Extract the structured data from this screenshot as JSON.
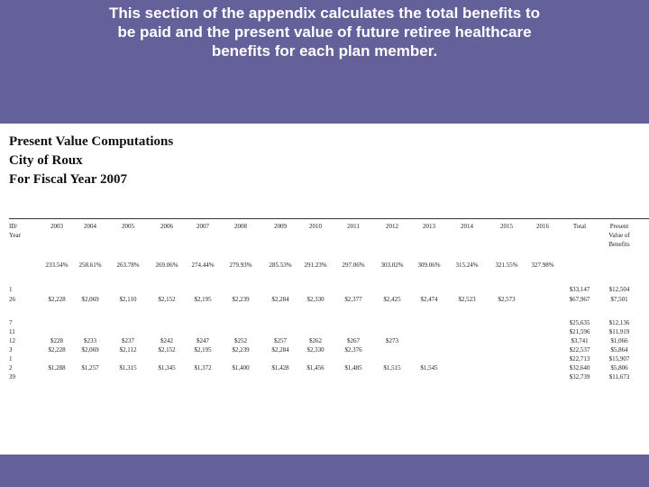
{
  "header": {
    "lines": [
      "This section of the appendix calculates the total benefits to",
      "be paid and the present value of future retiree healthcare",
      "benefits for each plan member."
    ]
  },
  "document": {
    "title_lines": [
      "Present Value Computations",
      "City of Roux",
      "For Fiscal Year 2007"
    ]
  },
  "table": {
    "header_rows": [
      [
        "ID/",
        "2003",
        "2004",
        "2005",
        "2006",
        "2007",
        "2008",
        "2009",
        "2010",
        "2011",
        "2012",
        "2013",
        "2014",
        "2015",
        "2016",
        "Total",
        "Present"
      ],
      [
        "Year",
        "",
        "",
        "",
        "",
        "",
        "",
        "",
        "",
        "",
        "",
        "",
        "",
        "",
        "",
        "",
        "Value of"
      ],
      [
        "",
        "",
        "",
        "",
        "",
        "",
        "",
        "",
        "",
        "",
        "",
        "",
        "",
        "",
        "",
        "",
        "Benefits"
      ]
    ],
    "percent_row": [
      "",
      "233.54%",
      "258.61%",
      "263.78%",
      "269.06%",
      "274.44%",
      "279.93%",
      "285.53%",
      "291.23%",
      "297.06%",
      "303.02%",
      "309.06%",
      "315.24%",
      "321.55%",
      "327.98%",
      "",
      ""
    ],
    "rows": [
      [
        "1",
        "",
        "",
        "",
        "",
        "",
        "",
        "",
        "",
        "",
        "",
        "",
        "",
        "",
        "",
        "$33,147",
        "$12,504"
      ],
      [
        "26",
        "$2,228",
        "$2,069",
        "$2,110",
        "$2,152",
        "$2,195",
        "$2,239",
        "$2,284",
        "$2,330",
        "$2,377",
        "$2,425",
        "$2,474",
        "$2,523",
        "$2,573",
        "",
        "$67,967",
        "$7,501"
      ],
      [
        "",
        "",
        "",
        "",
        "",
        "",
        "",
        "",
        "",
        "",
        "",
        "",
        "",
        "",
        "",
        "",
        ""
      ],
      [
        "7",
        "",
        "",
        "",
        "",
        "",
        "",
        "",
        "",
        "",
        "",
        "",
        "",
        "",
        "",
        "$25,635",
        "$12,136"
      ],
      [
        "11",
        "",
        "",
        "",
        "",
        "",
        "",
        "",
        "",
        "",
        "",
        "",
        "",
        "",
        "",
        "$21,596",
        "$11,919"
      ],
      [
        "12",
        "$228",
        "$233",
        "$237",
        "$242",
        "$247",
        "$252",
        "$257",
        "$262",
        "$267",
        "$273",
        "",
        "",
        "",
        "",
        "$3,741",
        "$1,066"
      ],
      [
        "3",
        "$2,228",
        "$2,069",
        "$2,112",
        "$2,152",
        "$2,195",
        "$2,239",
        "$2,284",
        "$2,330",
        "$2,376",
        "",
        "",
        "",
        "",
        "",
        "$22,537",
        "$5,864"
      ],
      [
        "1",
        "",
        "",
        "",
        "",
        "",
        "",
        "",
        "",
        "",
        "",
        "",
        "",
        "",
        "",
        "$22,713",
        "$15,907"
      ],
      [
        "2",
        "$1,288",
        "$1,257",
        "$1,315",
        "$1,345",
        "$1,372",
        "$1,400",
        "$1,428",
        "$1,456",
        "$1,485",
        "$1,515",
        "$1,545",
        "",
        "",
        "",
        "$32,640",
        "$5,806"
      ],
      [
        "39",
        "",
        "",
        "",
        "",
        "",
        "",
        "",
        "",
        "",
        "",
        "",
        "",
        "",
        "",
        "$32,739",
        "$11,673"
      ]
    ]
  }
}
